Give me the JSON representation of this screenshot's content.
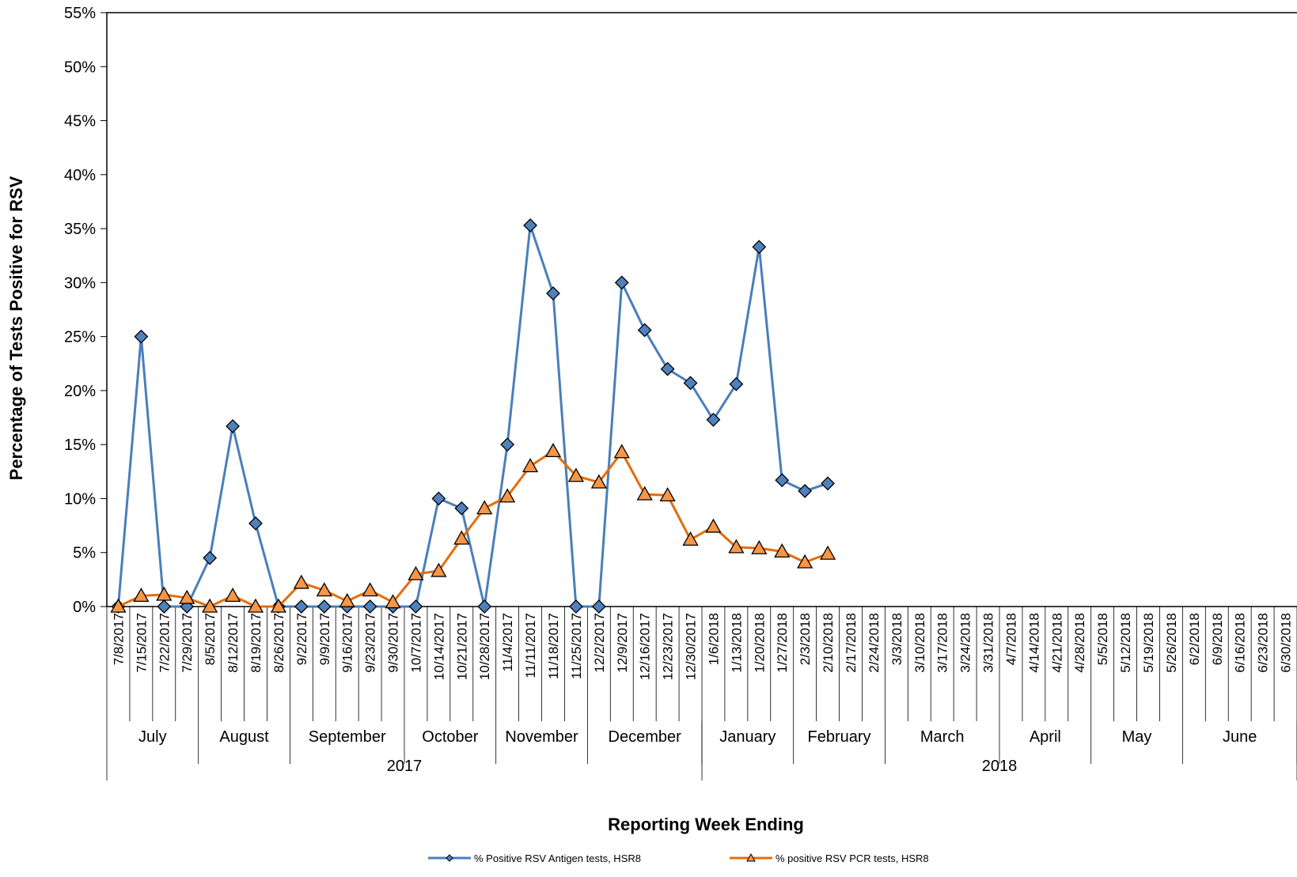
{
  "chart_data": {
    "type": "line",
    "title": "",
    "ylabel": "Percentage of Tests Positive for RSV",
    "xlabel": "Reporting Week Ending",
    "ylim": [
      0,
      55
    ],
    "yticks": [
      "0%",
      "5%",
      "10%",
      "15%",
      "20%",
      "25%",
      "30%",
      "35%",
      "40%",
      "45%",
      "50%",
      "55%"
    ],
    "ytick_values": [
      0,
      5,
      10,
      15,
      20,
      25,
      30,
      35,
      40,
      45,
      50,
      55
    ],
    "grid": false,
    "legend_position": "bottom",
    "x": [
      "7/8/2017",
      "7/15/2017",
      "7/22/2017",
      "7/29/2017",
      "8/5/2017",
      "8/12/2017",
      "8/19/2017",
      "8/26/2017",
      "9/2/2017",
      "9/9/2017",
      "9/16/2017",
      "9/23/2017",
      "9/30/2017",
      "10/7/2017",
      "10/14/2017",
      "10/21/2017",
      "10/28/2017",
      "11/4/2017",
      "11/11/2017",
      "11/18/2017",
      "11/25/2017",
      "12/2/2017",
      "12/9/2017",
      "12/16/2017",
      "12/23/2017",
      "12/30/2017",
      "1/6/2018",
      "1/13/2018",
      "1/20/2018",
      "1/27/2018",
      "2/3/2018",
      "2/10/2018",
      "2/17/2018",
      "2/24/2018",
      "3/3/2018",
      "3/10/2018",
      "3/17/2018",
      "3/24/2018",
      "3/31/2018",
      "4/7/2018",
      "4/14/2018",
      "4/21/2018",
      "4/28/2018",
      "5/5/2018",
      "5/12/2018",
      "5/19/2018",
      "5/26/2018",
      "6/2/2018",
      "6/9/2018",
      "6/16/2018",
      "6/23/2018",
      "6/30/2018"
    ],
    "months": [
      {
        "label": "July",
        "start": 0,
        "end": 4
      },
      {
        "label": "August",
        "start": 4,
        "end": 8
      },
      {
        "label": "September",
        "start": 8,
        "end": 13
      },
      {
        "label": "October",
        "start": 13,
        "end": 17
      },
      {
        "label": "November",
        "start": 17,
        "end": 21
      },
      {
        "label": "December",
        "start": 21,
        "end": 26
      },
      {
        "label": "January",
        "start": 26,
        "end": 30
      },
      {
        "label": "February",
        "start": 30,
        "end": 34
      },
      {
        "label": "March",
        "start": 34,
        "end": 39
      },
      {
        "label": "April",
        "start": 39,
        "end": 43
      },
      {
        "label": "May",
        "start": 43,
        "end": 47
      },
      {
        "label": "June",
        "start": 47,
        "end": 52
      }
    ],
    "years": [
      {
        "label": "2017",
        "start": 0,
        "end": 26
      },
      {
        "label": "2018",
        "start": 26,
        "end": 52
      }
    ],
    "series": [
      {
        "name": "% Positive RSV Antigen tests, HSR8",
        "color": "#4a7ebb",
        "marker_fill": "#4f81bd",
        "marker": "diamond",
        "values": [
          0,
          25,
          0,
          0,
          4.5,
          16.7,
          7.7,
          0,
          0,
          0,
          0,
          0,
          0,
          0,
          10,
          9.1,
          0,
          15,
          35.3,
          29,
          0,
          0,
          30,
          25.6,
          22,
          20.7,
          17.3,
          20.6,
          33.3,
          11.7,
          10.7,
          11.4,
          null,
          null,
          null,
          null,
          null,
          null,
          null,
          null,
          null,
          null,
          null,
          null,
          null,
          null,
          null,
          null,
          null,
          null,
          null,
          null
        ]
      },
      {
        "name": "% positive RSV PCR tests, HSR8",
        "color": "#e46c0a",
        "marker_fill": "#f79646",
        "marker": "triangle",
        "values": [
          0,
          1,
          1.1,
          0.8,
          0,
          1,
          0,
          0,
          2.2,
          1.5,
          0.5,
          1.5,
          0.4,
          3,
          3.3,
          6.3,
          9.1,
          10.2,
          13,
          14.4,
          12.1,
          11.5,
          14.3,
          10.4,
          10.3,
          6.2,
          7.4,
          5.5,
          5.4,
          5.1,
          4.1,
          4.9,
          null,
          null,
          null,
          null,
          null,
          null,
          null,
          null,
          null,
          null,
          null,
          null,
          null,
          null,
          null,
          null,
          null,
          null,
          null,
          null
        ]
      }
    ]
  }
}
